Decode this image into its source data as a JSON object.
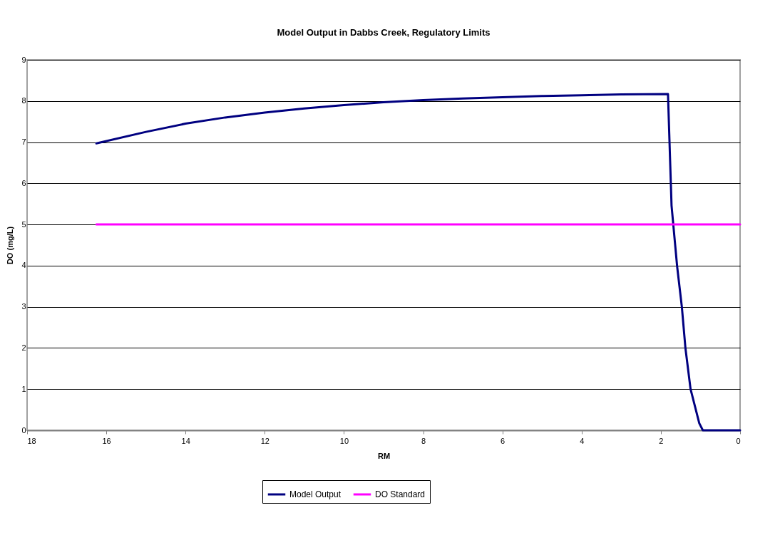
{
  "chart_data": {
    "type": "line",
    "title": "Model Output in Dabbs Creek, Regulatory Limits",
    "xlabel": "RM",
    "ylabel": "DO (mg/L)",
    "xlim": [
      18,
      0
    ],
    "xticks": [
      18,
      16,
      14,
      12,
      10,
      8,
      6,
      4,
      2,
      0
    ],
    "ylim": [
      0,
      9
    ],
    "yticks": [
      0,
      1,
      2,
      3,
      4,
      5,
      6,
      7,
      8,
      9
    ],
    "grid": "y",
    "legend": "bottom",
    "line_style": "solid",
    "marker": "none",
    "series": [
      {
        "name": "Model Output",
        "color": "#000080",
        "x": [
          16.25,
          15,
          14,
          13,
          12,
          11,
          10,
          9,
          8,
          7,
          6,
          5,
          4,
          3,
          1.82,
          1.73,
          1.59,
          1.47,
          1.38,
          1.25,
          1.03,
          0.94,
          0
        ],
        "values": [
          6.97,
          7.25,
          7.45,
          7.6,
          7.72,
          7.82,
          7.9,
          7.97,
          8.02,
          8.06,
          8.09,
          8.12,
          8.14,
          8.16,
          8.17,
          5.46,
          3.99,
          3,
          2,
          1,
          0.17,
          0,
          0
        ]
      },
      {
        "name": "DO Standard",
        "color": "#ff00ff",
        "x": [
          16.25,
          0
        ],
        "values": [
          5,
          5
        ]
      }
    ]
  }
}
